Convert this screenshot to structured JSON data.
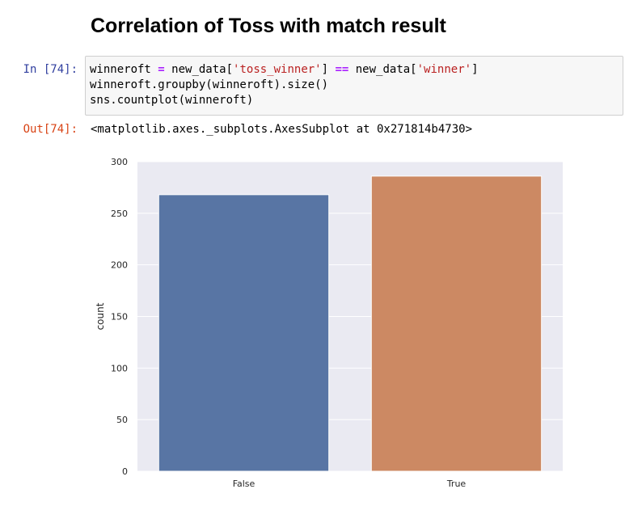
{
  "heading": "Correlation of Toss with match result",
  "cell_in": {
    "prompt": "In [74]:",
    "line1": {
      "var": "winneroft ",
      "assign": "=",
      "mid1": " new_data[",
      "str1": "'toss_winner'",
      "mid2": "] ",
      "eq": "==",
      "mid3": " new_data[",
      "str2": "'winner'",
      "end": "]"
    },
    "line2": "winneroft.groupby(winneroft).size()",
    "line3": "sns.countplot(winneroft)"
  },
  "cell_out": {
    "prompt": "Out[74]:",
    "text": "<matplotlib.axes._subplots.AxesSubplot at 0x271814b4730>"
  },
  "chart_data": {
    "type": "bar",
    "categories": [
      "False",
      "True"
    ],
    "values": [
      268,
      286
    ],
    "colors": [
      "#5875a4",
      "#cc8963"
    ],
    "xlabel": "",
    "ylabel": "count",
    "ylim": [
      0,
      300
    ],
    "yticks": [
      0,
      50,
      100,
      150,
      200,
      250,
      300
    ],
    "grid": true,
    "background": "#eaeaf2"
  }
}
